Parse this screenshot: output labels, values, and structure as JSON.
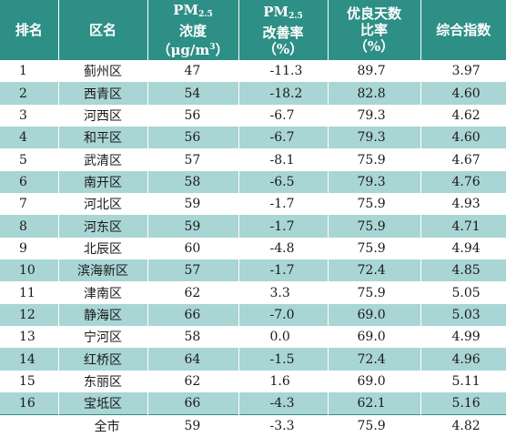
{
  "table": {
    "headers": {
      "rank": "排名",
      "district": "区名",
      "pm_line1_main": "PM",
      "pm_line1_sub": "2.5",
      "pm_line2": "浓度",
      "pm_line3_pre": "（μg/m",
      "pm_line3_sup": "3",
      "pm_line3_post": "）",
      "imp_line1_main": "PM",
      "imp_line1_sub": "2.5",
      "imp_line2": "改善率",
      "imp_line3": "（%）",
      "good_line1": "优良天数",
      "good_line2": "比率",
      "good_line3": "（%）",
      "composite": "综合指数"
    },
    "rows": [
      {
        "rank": "1",
        "district": "蓟州区",
        "pm25": "47",
        "improvement": "-11.3",
        "good_ratio": "89.7",
        "composite": "3.97"
      },
      {
        "rank": "2",
        "district": "西青区",
        "pm25": "54",
        "improvement": "-18.2",
        "good_ratio": "82.8",
        "composite": "4.60"
      },
      {
        "rank": "3",
        "district": "河西区",
        "pm25": "56",
        "improvement": "-6.7",
        "good_ratio": "79.3",
        "composite": "4.62"
      },
      {
        "rank": "4",
        "district": "和平区",
        "pm25": "56",
        "improvement": "-6.7",
        "good_ratio": "79.3",
        "composite": "4.60"
      },
      {
        "rank": "5",
        "district": "武清区",
        "pm25": "57",
        "improvement": "-8.1",
        "good_ratio": "75.9",
        "composite": "4.67"
      },
      {
        "rank": "6",
        "district": "南开区",
        "pm25": "58",
        "improvement": "-6.5",
        "good_ratio": "79.3",
        "composite": "4.76"
      },
      {
        "rank": "7",
        "district": "河北区",
        "pm25": "59",
        "improvement": "-1.7",
        "good_ratio": "75.9",
        "composite": "4.93"
      },
      {
        "rank": "8",
        "district": "河东区",
        "pm25": "59",
        "improvement": "-1.7",
        "good_ratio": "75.9",
        "composite": "4.71"
      },
      {
        "rank": "9",
        "district": "北辰区",
        "pm25": "60",
        "improvement": "-4.8",
        "good_ratio": "75.9",
        "composite": "4.94"
      },
      {
        "rank": "10",
        "district": "滨海新区",
        "pm25": "57",
        "improvement": "-1.7",
        "good_ratio": "72.4",
        "composite": "4.85"
      },
      {
        "rank": "11",
        "district": "津南区",
        "pm25": "62",
        "improvement": "3.3",
        "good_ratio": "75.9",
        "composite": "5.05"
      },
      {
        "rank": "12",
        "district": "静海区",
        "pm25": "66",
        "improvement": "-7.0",
        "good_ratio": "69.0",
        "composite": "5.03"
      },
      {
        "rank": "13",
        "district": "宁河区",
        "pm25": "58",
        "improvement": "0.0",
        "good_ratio": "69.0",
        "composite": "4.99"
      },
      {
        "rank": "14",
        "district": "红桥区",
        "pm25": "64",
        "improvement": "-1.5",
        "good_ratio": "72.4",
        "composite": "4.96"
      },
      {
        "rank": "15",
        "district": "东丽区",
        "pm25": "62",
        "improvement": "1.6",
        "good_ratio": "69.0",
        "composite": "5.11"
      },
      {
        "rank": "16",
        "district": "宝坻区",
        "pm25": "66",
        "improvement": "-4.3",
        "good_ratio": "62.1",
        "composite": "5.16"
      }
    ],
    "total": {
      "label": "全市",
      "pm25": "59",
      "improvement": "-3.3",
      "good_ratio": "75.9",
      "composite": "4.82"
    }
  },
  "colors": {
    "header_bg": "#2e8f86",
    "stripe_bg": "#a9d5d5",
    "header_text": "#ffffff"
  }
}
